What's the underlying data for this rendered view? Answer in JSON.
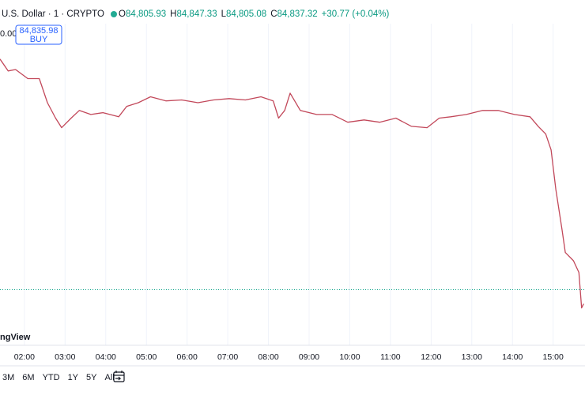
{
  "header": {
    "symbol": "U.S. Dollar · 1 · CRYPTO",
    "ohlc": [
      {
        "key": "O",
        "value": "84,805.93"
      },
      {
        "key": "H",
        "value": "84,847.33"
      },
      {
        "key": "L",
        "value": "84,805.08"
      },
      {
        "key": "C",
        "value": "84,837.32"
      }
    ],
    "change": "+30.77 (+0.04%)"
  },
  "axis_fragment": "0.00",
  "buy_box": {
    "price": "84,835.98",
    "label": "BUY"
  },
  "logo": "ngView",
  "ranges": [
    "3M",
    "6M",
    "YTD",
    "1Y",
    "5Y",
    "All"
  ],
  "chart_data": {
    "type": "line",
    "color": "#c2485a",
    "x": [
      "01:24",
      "01:36",
      "01:47",
      "02:05",
      "02:22",
      "02:34",
      "02:46",
      "02:55",
      "03:09",
      "03:21",
      "03:38",
      "03:56",
      "04:19",
      "04:31",
      "04:48",
      "05:06",
      "05:29",
      "05:52",
      "06:16",
      "06:39",
      "07:02",
      "07:26",
      "07:49",
      "08:07",
      "08:15",
      "08:24",
      "08:32",
      "08:47",
      "09:11",
      "09:34",
      "09:57",
      "10:21",
      "10:44",
      "11:08",
      "11:31",
      "11:54",
      "12:12",
      "12:29",
      "12:52",
      "13:16",
      "13:39",
      "14:03",
      "14:26",
      "14:38",
      "14:49",
      "14:57",
      "15:04",
      "15:13",
      "15:18",
      "15:30",
      "15:38",
      "15:42",
      "15:45"
    ],
    "values": [
      85345,
      85319,
      85322,
      85302,
      85302,
      85249,
      85215,
      85194,
      85215,
      85232,
      85223,
      85227,
      85218,
      85241,
      85249,
      85262,
      85253,
      85255,
      85249,
      85255,
      85258,
      85255,
      85262,
      85253,
      85215,
      85232,
      85270,
      85232,
      85223,
      85223,
      85206,
      85211,
      85206,
      85215,
      85197,
      85194,
      85215,
      85218,
      85223,
      85232,
      85232,
      85223,
      85218,
      85197,
      85180,
      85145,
      85058,
      84971,
      84919,
      84901,
      84875,
      84797,
      84806
    ],
    "xlim": [
      "01:24",
      "15:47"
    ],
    "xticks": [
      "02:00",
      "03:00",
      "04:00",
      "05:00",
      "06:00",
      "07:00",
      "08:00",
      "09:00",
      "10:00",
      "11:00",
      "12:00",
      "13:00",
      "14:00",
      "15:00"
    ],
    "ylim": [
      84753,
      85423
    ],
    "price_line": 84837.32,
    "price_line_color": "#22ab94"
  }
}
